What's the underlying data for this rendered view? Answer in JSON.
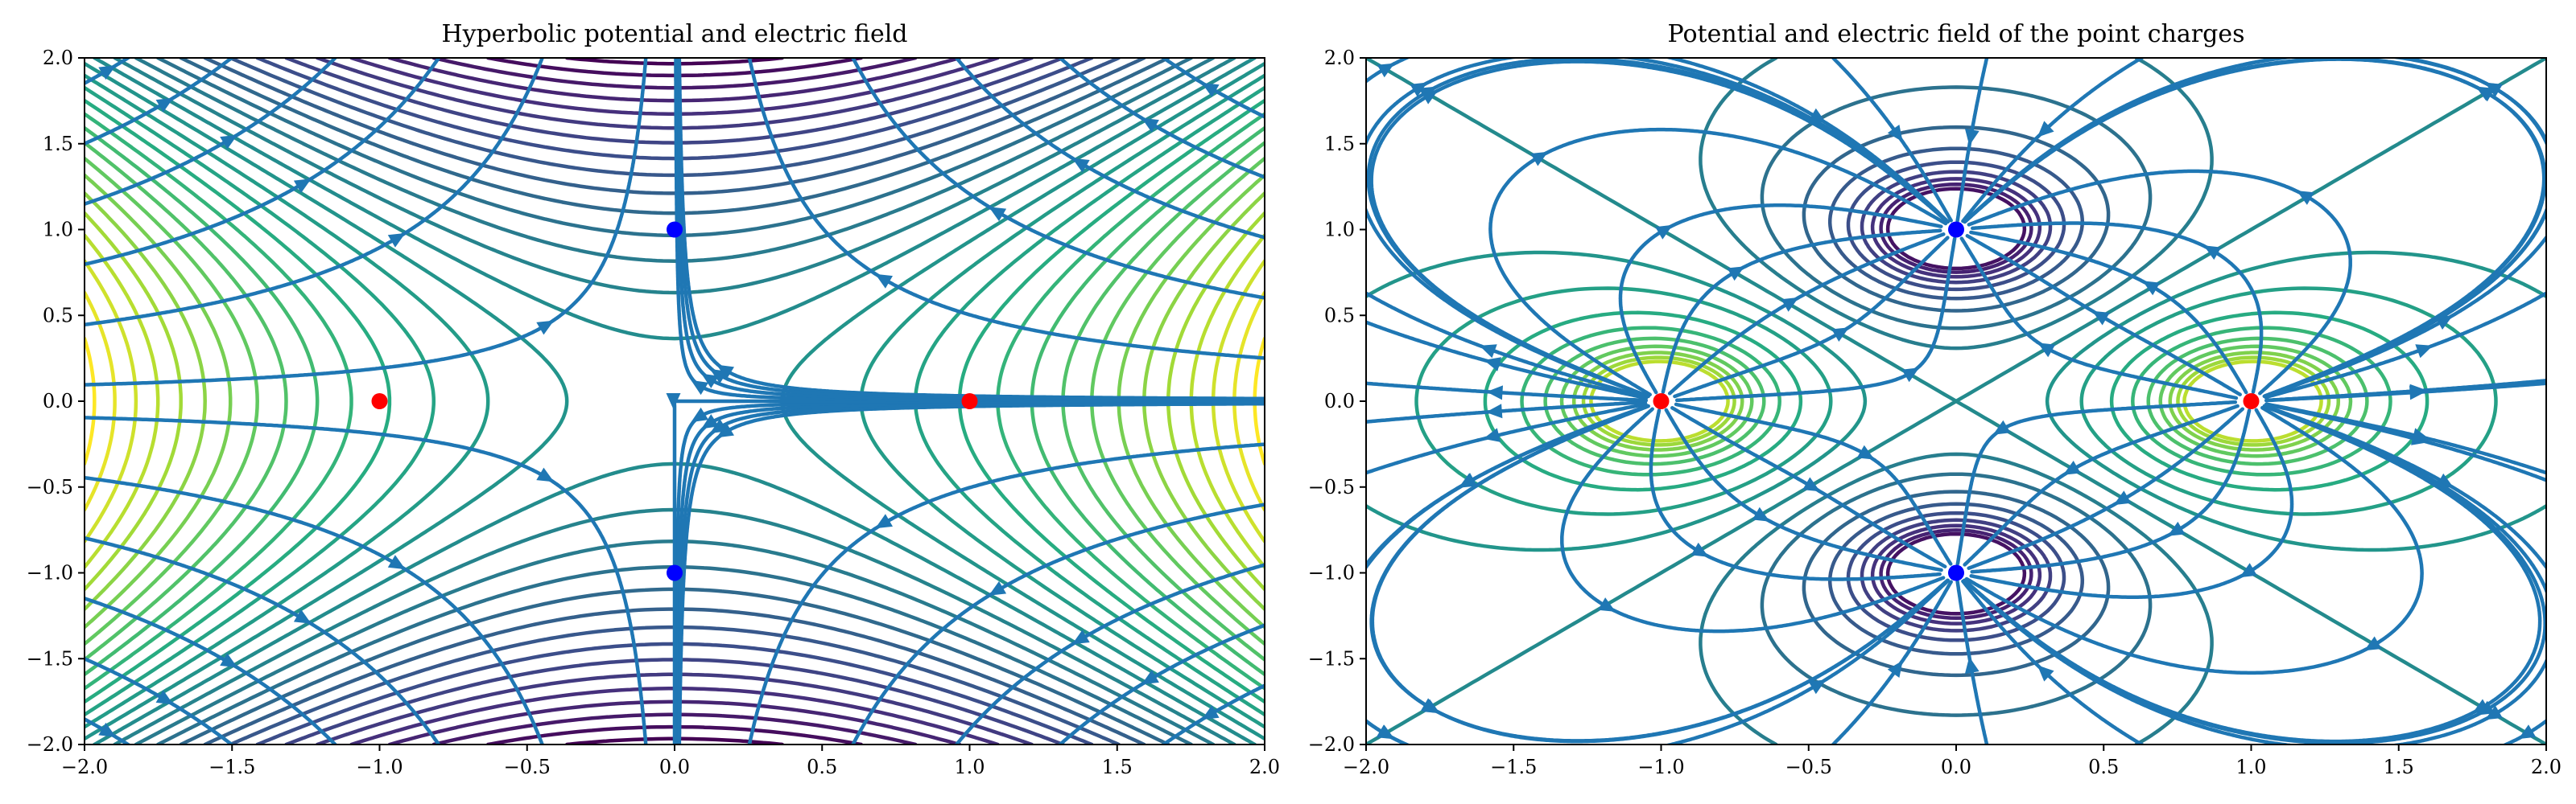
{
  "chart_data": [
    {
      "type": "contour",
      "title": "Hyperbolic potential and electric field",
      "xlabel": "",
      "ylabel": "",
      "xlim": [
        -2.0,
        2.0
      ],
      "ylim": [
        -2.0,
        2.0
      ],
      "xticks": [
        "−2.0",
        "−1.5",
        "−1.0",
        "−0.5",
        "0.0",
        "0.5",
        "1.0",
        "1.5",
        "2.0"
      ],
      "yticks": [
        "2.0",
        "1.5",
        "1.0",
        "0.5",
        "0.0",
        "−0.5",
        "−1.0",
        "−1.5",
        "−2.0"
      ],
      "potential": "x^2 - y^2",
      "field_lines": "streamlines",
      "colormap": "viridis",
      "contour_levels": 30,
      "grid": false,
      "charges": [
        {
          "x": -1.0,
          "y": 0.0,
          "color": "#ff0000"
        },
        {
          "x": 1.0,
          "y": 0.0,
          "color": "#ff0000"
        },
        {
          "x": 0.0,
          "y": 1.0,
          "color": "#0000ff"
        },
        {
          "x": 0.0,
          "y": -1.0,
          "color": "#0000ff"
        }
      ],
      "stream_color": "#1f77b4"
    },
    {
      "type": "contour",
      "title": "Potential and electric field of the point charges",
      "xlabel": "",
      "ylabel": "",
      "xlim": [
        -2.0,
        2.0
      ],
      "ylim": [
        -2.0,
        2.0
      ],
      "xticks": [
        "−2.0",
        "−1.5",
        "−1.0",
        "−0.5",
        "0.0",
        "0.5",
        "1.0",
        "1.5",
        "2.0"
      ],
      "yticks": [
        "2.0",
        "1.5",
        "1.0",
        "0.5",
        "0.0",
        "−0.5",
        "−1.0",
        "−1.5",
        "−2.0"
      ],
      "potential": "sum of point-charge potentials (+ at (±1,0), − at (0,±1))",
      "field_lines": "streamlines",
      "colormap": "viridis",
      "grid": false,
      "charges": [
        {
          "x": -1.0,
          "y": 0.0,
          "color": "#ff0000"
        },
        {
          "x": 1.0,
          "y": 0.0,
          "color": "#ff0000"
        },
        {
          "x": 0.0,
          "y": 1.0,
          "color": "#0000ff"
        },
        {
          "x": 0.0,
          "y": -1.0,
          "color": "#0000ff"
        }
      ],
      "stream_color": "#1f77b4"
    }
  ]
}
